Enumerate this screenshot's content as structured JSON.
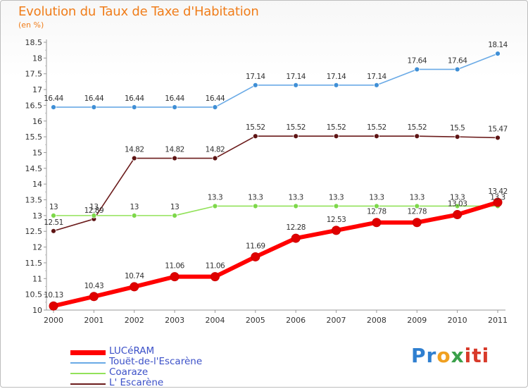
{
  "title": "Evolution du Taux de Taxe d'Habitation",
  "subtitle": "(en %)",
  "logo": {
    "parts": [
      "Pr",
      "o",
      "x",
      "iti"
    ]
  },
  "colors": {
    "luceram": "#ff0000",
    "touet": "#6aaae6",
    "coaraze": "#92e25a",
    "escarene": "#6b1b1b",
    "axis_text": "#333333",
    "label_text": "#333333"
  },
  "chart_data": {
    "type": "line",
    "x": [
      "2000",
      "2001",
      "2002",
      "2003",
      "2004",
      "2005",
      "2006",
      "2007",
      "2008",
      "2009",
      "2010",
      "2011"
    ],
    "ylim": [
      10,
      18.5
    ],
    "yticks": [
      "10",
      "10.5",
      "11",
      "11.5",
      "12",
      "12.5",
      "13",
      "13.5",
      "14",
      "14.5",
      "15",
      "15.5",
      "16",
      "16.5",
      "17",
      "17.5",
      "18",
      "18.5"
    ],
    "series": [
      {
        "name": "LUCéRAM",
        "key": "luceram",
        "values": [
          10.13,
          10.43,
          10.74,
          11.06,
          11.06,
          11.69,
          12.28,
          12.53,
          12.78,
          12.78,
          13.03,
          13.42
        ],
        "labels": [
          "10.13",
          "10.43",
          "10.74",
          "11.06",
          "11.06",
          "11.69",
          "12.28",
          "12.53",
          "12.78",
          "12.78",
          "13.03",
          "13.42"
        ]
      },
      {
        "name": "Touët-de-l'Escarène",
        "key": "touet",
        "values": [
          16.44,
          16.44,
          16.44,
          16.44,
          16.44,
          17.14,
          17.14,
          17.14,
          17.14,
          17.64,
          17.64,
          18.14
        ],
        "labels": [
          "16.44",
          "16.44",
          "16.44",
          "16.44",
          "16.44",
          "17.14",
          "17.14",
          "17.14",
          "17.14",
          "17.64",
          "17.64",
          "18.14"
        ]
      },
      {
        "name": "Coaraze",
        "key": "coaraze",
        "values": [
          13,
          13,
          13,
          13,
          13.3,
          13.3,
          13.3,
          13.3,
          13.3,
          13.3,
          13.3,
          13.3
        ],
        "labels": [
          "13",
          "13",
          "13",
          "13",
          "13.3",
          "13.3",
          "13.3",
          "13.3",
          "13.3",
          "13.3",
          "13.3",
          "13.3"
        ]
      },
      {
        "name": "L' Escarène",
        "key": "escarene",
        "values": [
          12.51,
          12.89,
          14.82,
          14.82,
          14.82,
          15.52,
          15.52,
          15.52,
          15.52,
          15.52,
          15.5,
          15.47
        ],
        "labels": [
          "12.51",
          "12.89",
          "14.82",
          "14.82",
          "14.82",
          "15.52",
          "15.52",
          "15.52",
          "15.52",
          "15.52",
          "15.5",
          "15.47"
        ]
      }
    ],
    "legend_position": "bottom-left",
    "grid": false
  }
}
